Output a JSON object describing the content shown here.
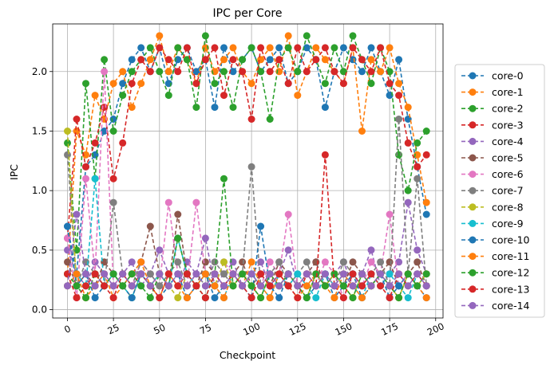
{
  "chart_data": {
    "type": "line",
    "title": "IPC per Core",
    "xlabel": "Checkpoint",
    "ylabel": "IPC",
    "xlim": [
      -8,
      204
    ],
    "ylim": [
      -0.07,
      2.4
    ],
    "xticks": [
      0,
      25,
      50,
      75,
      100,
      125,
      150,
      175,
      200
    ],
    "xtick_labels": [
      "0",
      "25",
      "50",
      "75",
      "100",
      "125",
      "150",
      "175",
      "200"
    ],
    "yticks": [
      0.0,
      0.5,
      1.0,
      1.5,
      2.0
    ],
    "ytick_labels": [
      "0.0",
      "0.5",
      "1.0",
      "1.5",
      "2.0"
    ],
    "grid": true,
    "legend_position": "right-outside",
    "line_style": "dashed",
    "marker": "circle",
    "x": [
      0,
      5,
      10,
      15,
      20,
      25,
      30,
      35,
      40,
      45,
      50,
      55,
      60,
      65,
      70,
      75,
      80,
      85,
      90,
      95,
      100,
      105,
      110,
      115,
      120,
      125,
      130,
      135,
      140,
      145,
      150,
      155,
      160,
      165,
      170,
      175,
      180,
      185,
      190,
      195
    ],
    "series": [
      {
        "name": "core-0",
        "color": "#1f77b4",
        "values": [
          0.7,
          0.3,
          1.2,
          1.3,
          1.5,
          1.6,
          1.9,
          2.1,
          2.2,
          2.0,
          2.2,
          1.9,
          2.1,
          2.2,
          2.0,
          2.1,
          1.7,
          2.2,
          2.0,
          2.1,
          2.2,
          2.0,
          2.1,
          2.2,
          1.9,
          2.0,
          2.2,
          2.1,
          1.7,
          2.0,
          2.2,
          2.1,
          2.0,
          2.2,
          2.0,
          1.8,
          2.1,
          1.6,
          1.2,
          0.8
        ]
      },
      {
        "name": "core-1",
        "color": "#ff7f0e",
        "values": [
          0.3,
          1.5,
          1.3,
          1.8,
          1.6,
          1.9,
          2.0,
          1.7,
          1.9,
          2.1,
          2.3,
          2.0,
          2.2,
          2.1,
          1.9,
          2.2,
          2.0,
          2.1,
          2.2,
          2.0,
          1.9,
          2.1,
          2.2,
          2.0,
          2.3,
          1.8,
          2.0,
          2.2,
          2.1,
          2.0,
          1.9,
          2.2,
          1.5,
          2.1,
          2.0,
          2.2,
          1.9,
          1.7,
          1.3,
          0.9
        ]
      },
      {
        "name": "core-2",
        "color": "#2ca02c",
        "values": [
          1.4,
          0.5,
          1.9,
          1.1,
          2.1,
          1.5,
          1.8,
          2.0,
          2.1,
          2.2,
          2.0,
          1.8,
          2.2,
          2.1,
          1.7,
          2.3,
          1.9,
          2.0,
          1.7,
          2.1,
          2.2,
          2.0,
          1.6,
          2.1,
          2.2,
          2.0,
          2.3,
          2.1,
          1.9,
          2.2,
          2.0,
          2.3,
          2.1,
          1.9,
          2.2,
          2.0,
          1.3,
          1.0,
          1.4,
          1.5
        ]
      },
      {
        "name": "core-3",
        "color": "#d62728",
        "values": [
          0.6,
          1.6,
          1.2,
          1.4,
          1.7,
          1.1,
          1.4,
          1.9,
          2.1,
          2.0,
          2.2,
          2.1,
          2.0,
          2.2,
          1.9,
          2.1,
          2.2,
          1.8,
          2.1,
          2.0,
          1.6,
          2.2,
          2.0,
          2.1,
          1.9,
          2.2,
          2.0,
          2.1,
          2.2,
          2.0,
          1.9,
          2.2,
          2.1,
          2.0,
          2.2,
          1.9,
          1.8,
          1.4,
          1.2,
          1.3
        ]
      },
      {
        "name": "core-4",
        "color": "#9467bd",
        "values": [
          0.5,
          0.3,
          0.2,
          0.4,
          0.3,
          0.2,
          0.3,
          0.4,
          0.2,
          0.3,
          0.5,
          0.3,
          0.2,
          0.4,
          0.3,
          0.6,
          0.2,
          0.3,
          0.4,
          0.2,
          0.3,
          0.4,
          0.2,
          0.3,
          0.5,
          0.2,
          0.3,
          0.4,
          0.2,
          0.3,
          0.4,
          0.2,
          0.3,
          0.5,
          0.2,
          0.3,
          0.4,
          0.9,
          0.5,
          0.3
        ]
      },
      {
        "name": "core-5",
        "color": "#8c564b",
        "values": [
          0.4,
          0.2,
          0.3,
          0.2,
          0.4,
          0.3,
          0.2,
          0.3,
          0.4,
          0.7,
          0.3,
          0.2,
          0.8,
          0.3,
          0.2,
          0.4,
          0.3,
          0.2,
          0.3,
          0.4,
          0.2,
          0.3,
          0.2,
          0.4,
          0.3,
          0.2,
          0.3,
          0.4,
          0.2,
          0.3,
          0.2,
          0.4,
          0.3,
          0.2,
          0.3,
          0.4,
          0.2,
          0.3,
          0.4,
          0.2
        ]
      },
      {
        "name": "core-6",
        "color": "#e377c2",
        "values": [
          0.6,
          0.1,
          1.1,
          0.3,
          2.0,
          0.2,
          0.3,
          0.2,
          0.4,
          0.3,
          0.2,
          0.9,
          0.3,
          0.2,
          0.9,
          0.3,
          0.2,
          0.4,
          0.3,
          0.2,
          0.3,
          0.2,
          0.4,
          0.3,
          0.8,
          0.2,
          0.3,
          0.2,
          0.4,
          0.3,
          0.1,
          0.3,
          0.2,
          0.4,
          0.3,
          0.8,
          0.2,
          0.3,
          0.2,
          0.3
        ]
      },
      {
        "name": "core-7",
        "color": "#7f7f7f",
        "values": [
          1.3,
          0.2,
          0.4,
          0.3,
          0.2,
          0.9,
          0.3,
          0.2,
          0.4,
          0.3,
          0.2,
          0.3,
          0.4,
          0.2,
          0.3,
          0.2,
          0.4,
          0.3,
          0.2,
          0.3,
          1.2,
          0.2,
          0.3,
          0.4,
          0.2,
          0.3,
          0.4,
          0.2,
          0.3,
          0.2,
          0.4,
          0.3,
          0.2,
          0.3,
          0.4,
          0.2,
          1.6,
          0.3,
          1.1,
          0.2
        ]
      },
      {
        "name": "core-8",
        "color": "#bcbd22",
        "values": [
          1.5,
          0.2,
          0.1,
          0.3,
          0.2,
          0.3,
          0.2,
          0.1,
          0.3,
          0.2,
          0.3,
          0.2,
          0.1,
          0.3,
          0.2,
          0.3,
          0.2,
          0.4,
          0.2,
          0.3,
          0.2,
          0.1,
          0.3,
          0.2,
          0.3,
          0.2,
          0.1,
          0.3,
          0.2,
          0.3,
          0.2,
          0.1,
          0.3,
          0.2,
          0.3,
          0.2,
          0.1,
          0.3,
          0.2,
          0.3
        ]
      },
      {
        "name": "core-9",
        "color": "#17becf",
        "values": [
          0.2,
          0.3,
          0.2,
          1.1,
          0.2,
          0.3,
          0.2,
          0.1,
          0.3,
          0.2,
          0.3,
          0.2,
          0.6,
          0.3,
          0.2,
          0.3,
          0.2,
          0.1,
          0.3,
          0.2,
          0.3,
          0.2,
          0.1,
          0.3,
          0.2,
          0.3,
          0.2,
          0.1,
          0.3,
          0.2,
          0.3,
          0.2,
          0.1,
          0.3,
          0.2,
          0.3,
          0.2,
          0.1,
          0.3,
          0.2
        ]
      },
      {
        "name": "core-10",
        "color": "#1f77b4",
        "values": [
          0.7,
          0.2,
          0.3,
          0.1,
          0.2,
          0.3,
          0.2,
          0.1,
          0.3,
          0.2,
          0.1,
          0.2,
          0.3,
          0.1,
          0.2,
          0.3,
          0.1,
          0.2,
          0.3,
          0.2,
          0.1,
          0.7,
          0.2,
          0.1,
          0.3,
          0.2,
          0.1,
          0.2,
          0.3,
          0.1,
          0.2,
          0.3,
          0.1,
          0.2,
          0.3,
          0.1,
          0.2,
          0.3,
          0.2,
          0.1
        ]
      },
      {
        "name": "core-11",
        "color": "#ff7f0e",
        "values": [
          0.2,
          0.3,
          0.1,
          0.2,
          0.3,
          0.1,
          0.2,
          0.3,
          0.4,
          0.2,
          0.1,
          0.3,
          0.2,
          0.1,
          0.2,
          0.3,
          0.2,
          0.1,
          0.3,
          0.2,
          0.4,
          0.2,
          0.1,
          0.3,
          0.2,
          0.1,
          0.2,
          0.3,
          0.2,
          0.1,
          0.3,
          0.2,
          0.1,
          0.2,
          0.3,
          0.2,
          0.1,
          0.3,
          0.2,
          0.1
        ]
      },
      {
        "name": "core-12",
        "color": "#2ca02c",
        "values": [
          0.3,
          0.2,
          0.1,
          0.3,
          0.2,
          0.3,
          0.2,
          0.3,
          0.2,
          0.1,
          0.3,
          0.2,
          0.6,
          0.3,
          0.2,
          0.1,
          0.3,
          1.1,
          0.2,
          0.3,
          0.2,
          0.1,
          0.3,
          0.2,
          0.3,
          0.2,
          0.1,
          0.3,
          0.2,
          0.3,
          0.2,
          0.1,
          0.3,
          0.2,
          0.3,
          0.2,
          0.1,
          0.3,
          0.2,
          0.3
        ]
      },
      {
        "name": "core-13",
        "color": "#d62728",
        "values": [
          0.3,
          0.1,
          0.2,
          0.3,
          0.2,
          0.1,
          0.3,
          0.2,
          0.3,
          0.2,
          0.1,
          0.3,
          0.2,
          0.3,
          0.2,
          0.1,
          0.3,
          0.2,
          0.3,
          0.2,
          0.1,
          0.3,
          0.2,
          0.3,
          0.2,
          0.1,
          0.3,
          0.2,
          1.3,
          0.2,
          0.1,
          0.3,
          0.2,
          0.3,
          0.2,
          0.1,
          0.3,
          0.2,
          0.3,
          0.2
        ]
      },
      {
        "name": "core-14",
        "color": "#9467bd",
        "values": [
          0.2,
          0.8,
          0.3,
          0.2,
          0.3,
          0.2,
          0.3,
          0.2,
          0.3,
          0.2,
          0.3,
          0.2,
          0.3,
          0.2,
          0.3,
          0.2,
          0.3,
          0.2,
          0.3,
          0.2,
          0.3,
          0.2,
          0.3,
          0.2,
          0.3,
          0.2,
          0.3,
          0.2,
          0.3,
          0.2,
          0.3,
          0.2,
          0.3,
          0.2,
          0.3,
          0.2,
          0.3,
          0.2,
          0.3,
          0.2
        ]
      }
    ]
  }
}
